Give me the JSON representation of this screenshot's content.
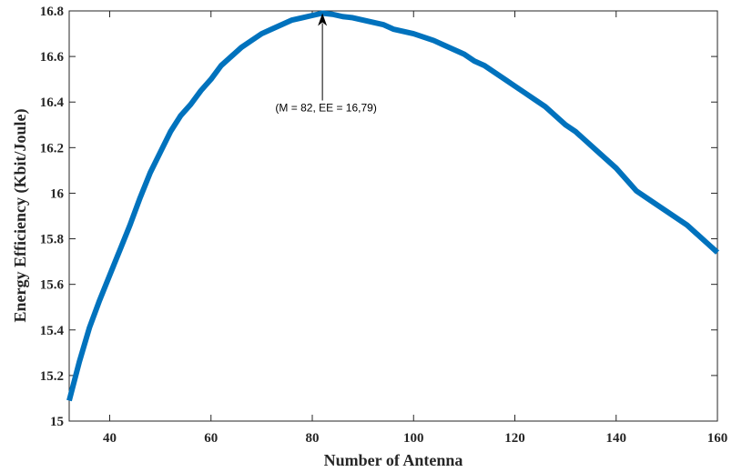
{
  "chart_data": {
    "type": "line",
    "title": "",
    "xlabel": "Number of Antenna",
    "ylabel": "Energy Efficiency (Kbit/Joule)",
    "xlim": [
      32,
      160
    ],
    "ylim": [
      15,
      16.8
    ],
    "xticks": [
      40,
      60,
      80,
      100,
      120,
      140,
      160
    ],
    "xtick_labels": [
      "40",
      "60",
      "80",
      "100",
      "120",
      "140",
      "160"
    ],
    "yticks": [
      15,
      15.2,
      15.4,
      15.6,
      15.8,
      16,
      16.2,
      16.4,
      16.6,
      16.8
    ],
    "ytick_labels": [
      "15",
      "15.2",
      "15.4",
      "15.6",
      "15.8",
      "16",
      "16.2",
      "16.4",
      "16.6",
      "16.8"
    ],
    "grid": false,
    "series": [
      {
        "color": "#0072BD",
        "x": [
          32,
          34,
          36,
          38,
          40,
          42,
          44,
          46,
          48,
          50,
          52,
          54,
          56,
          58,
          60,
          62,
          64,
          66,
          68,
          70,
          72,
          74,
          76,
          78,
          80,
          82,
          84,
          86,
          88,
          90,
          92,
          94,
          96,
          98,
          100,
          102,
          104,
          106,
          108,
          110,
          112,
          114,
          116,
          118,
          120,
          122,
          124,
          126,
          128,
          130,
          132,
          134,
          136,
          138,
          140,
          142,
          144,
          146,
          148,
          150,
          152,
          154,
          156,
          158,
          160
        ],
        "y": [
          15.09,
          15.26,
          15.41,
          15.53,
          15.64,
          15.75,
          15.86,
          15.98,
          16.09,
          16.18,
          16.27,
          16.34,
          16.39,
          16.45,
          16.5,
          16.56,
          16.6,
          16.64,
          16.67,
          16.7,
          16.72,
          16.74,
          16.76,
          16.77,
          16.78,
          16.79,
          16.785,
          16.775,
          16.77,
          16.76,
          16.75,
          16.74,
          16.72,
          16.71,
          16.7,
          16.685,
          16.67,
          16.65,
          16.63,
          16.61,
          16.58,
          16.56,
          16.53,
          16.5,
          16.47,
          16.44,
          16.41,
          16.38,
          16.34,
          16.3,
          16.27,
          16.23,
          16.19,
          16.15,
          16.11,
          16.06,
          16.01,
          15.98,
          15.95,
          15.92,
          15.89,
          15.86,
          15.82,
          15.78,
          15.74
        ]
      }
    ],
    "annotations": [
      {
        "text": "(M = 82, EE = 16,79)",
        "x": 82,
        "y": 16.79
      }
    ]
  }
}
